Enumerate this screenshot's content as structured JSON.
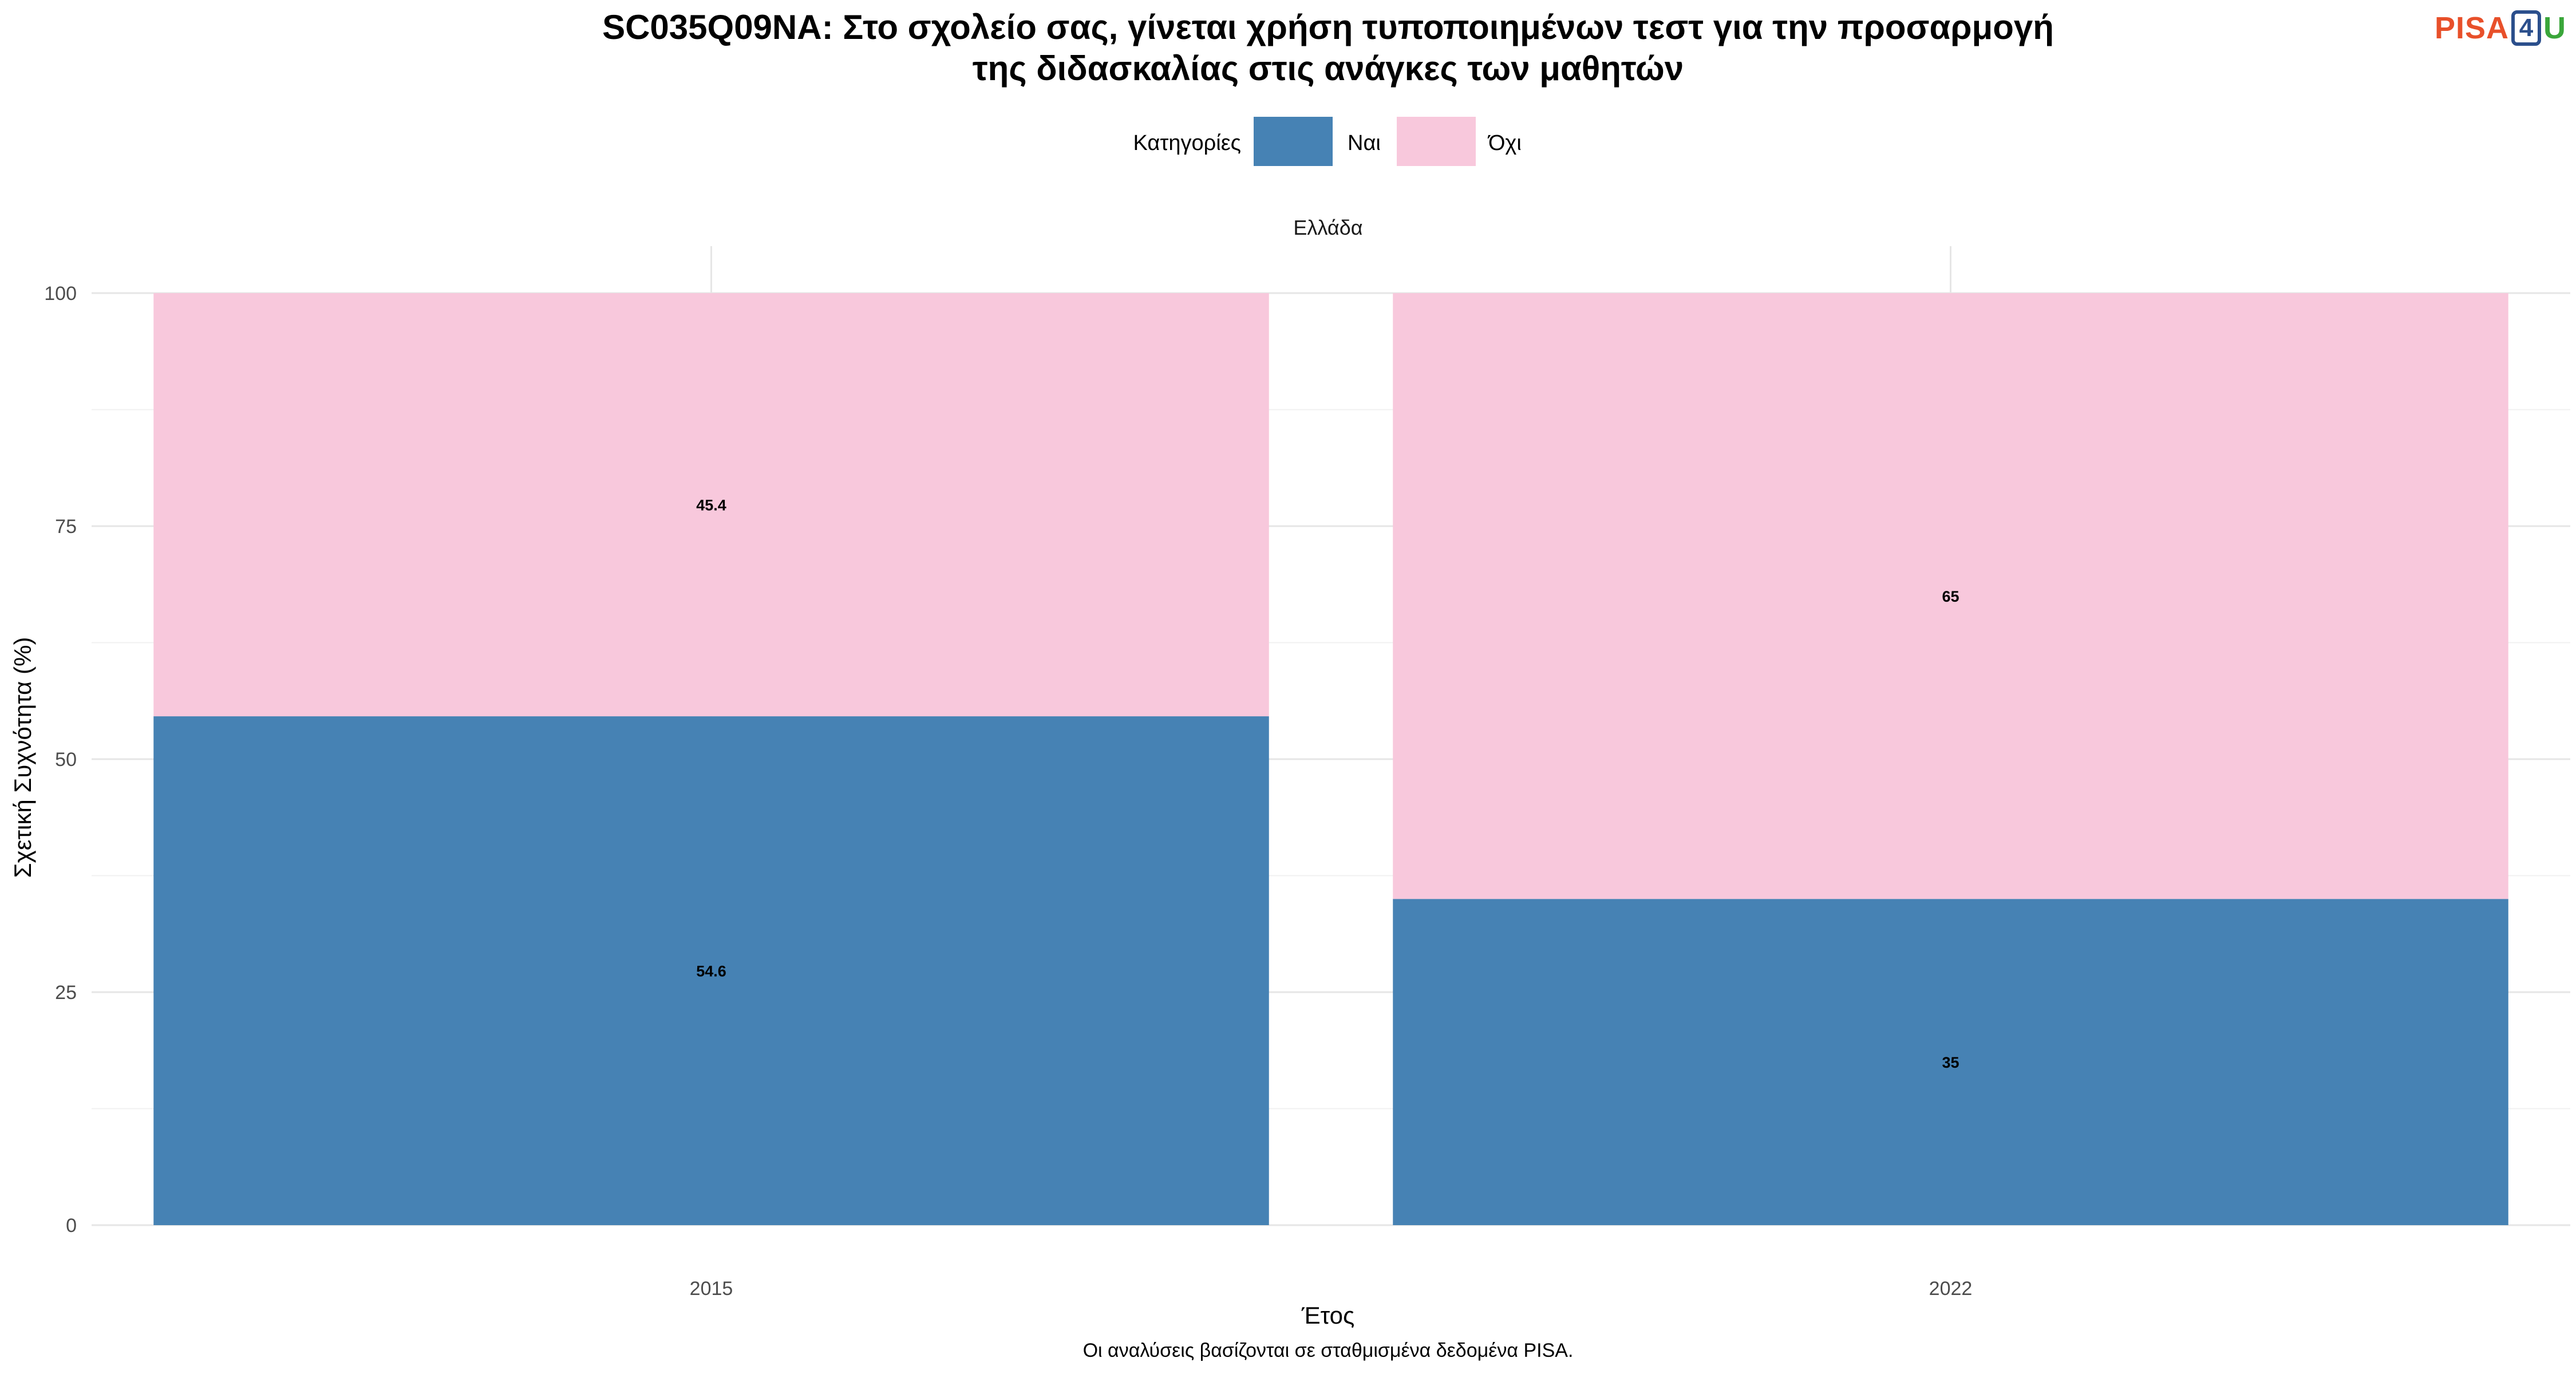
{
  "chart_data": {
    "type": "bar",
    "stacked": true,
    "title_lines": [
      "SC035Q09NA: Στο σχολείο σας, γίνεται χρήση τυποποιημένων τεστ για την προσαρμογή",
      "της διδασκαλίας στις ανάγκες των μαθητών"
    ],
    "facet_label": "Ελλάδα",
    "legend_title": "Κατηγορίες",
    "legend_position": "top",
    "xlabel": "Έτος",
    "ylabel": "Σχετική Συχνότητα (%)",
    "caption": "Οι αναλύσεις βασίζονται σε σταθμισμένα δεδομένα PISA.",
    "categories": [
      "2015",
      "2022"
    ],
    "y_ticks": [
      "0",
      "25",
      "50",
      "75",
      "100"
    ],
    "ylim": [
      0,
      100
    ],
    "grid": true,
    "series": [
      {
        "name": "Ναι",
        "color": "#4682B4",
        "values": [
          54.6,
          35
        ],
        "labels": [
          "54.6",
          "35"
        ]
      },
      {
        "name": "Όχι",
        "color": "#F8C8DC",
        "values": [
          45.4,
          65
        ],
        "labels": [
          "45.4",
          "65"
        ]
      }
    ]
  },
  "logo": {
    "text_a": "PISA",
    "text_b": "4",
    "text_c": "U"
  }
}
